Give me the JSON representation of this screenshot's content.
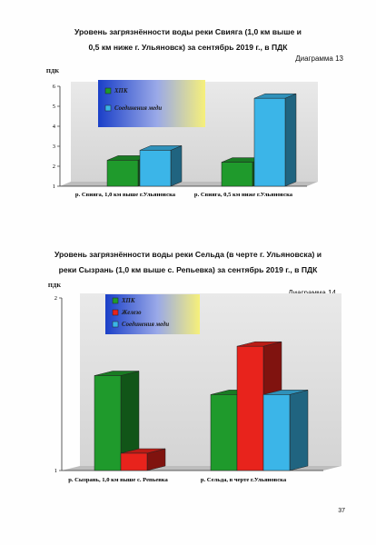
{
  "page": {
    "number": "37"
  },
  "chart_data": [
    {
      "type": "bar",
      "title_line1": "Уровень загрязнённости воды реки Свияга (1,0 км выше и",
      "title_line2": "0,5 км ниже г. Ульяновск) за сентябрь 2019 г., в ПДК",
      "diagram_label": "Диаграмма 13",
      "ylabel": "ПДК",
      "ylim": [
        1,
        6
      ],
      "yticks": [
        1,
        2,
        3,
        4,
        5,
        6
      ],
      "categories": [
        "р. Свияга, 1,0 км выше г.Ульяновска",
        "р. Свияга, 0,5 км ниже г.Ульяновска"
      ],
      "series": [
        {
          "name": "ХПК",
          "color": "#1f9a2c",
          "values": [
            2.3,
            2.2
          ]
        },
        {
          "name": "Соединения меди",
          "color": "#3bb5e8",
          "values": [
            2.8,
            5.4
          ]
        }
      ],
      "legend_position": "top-left"
    },
    {
      "type": "bar",
      "title_line1": "Уровень загрязнённости воды реки Сельда (в черте г. Ульяновска) и",
      "title_line2": "реки Сызрань (1,0 км выше с. Репьевка) за сентябрь 2019 г., в ПДК",
      "diagram_label": "Диаграмма 14",
      "ylabel": "ПДК",
      "ylim": [
        1,
        2
      ],
      "yticks": [
        1,
        2
      ],
      "categories": [
        "р. Сызрань, 1,0 км выше с. Репьевка",
        "р. Сельда, в черте г.Ульяновска"
      ],
      "series": [
        {
          "name": "ХПК",
          "color": "#1f9a2c",
          "values": [
            1.55,
            1.44
          ]
        },
        {
          "name": "Железо",
          "color": "#e8231c",
          "values": [
            1.1,
            1.72
          ]
        },
        {
          "name": "Соединения меди",
          "color": "#3bb5e8",
          "values": [
            null,
            1.44
          ]
        }
      ],
      "legend_position": "top-left"
    }
  ]
}
